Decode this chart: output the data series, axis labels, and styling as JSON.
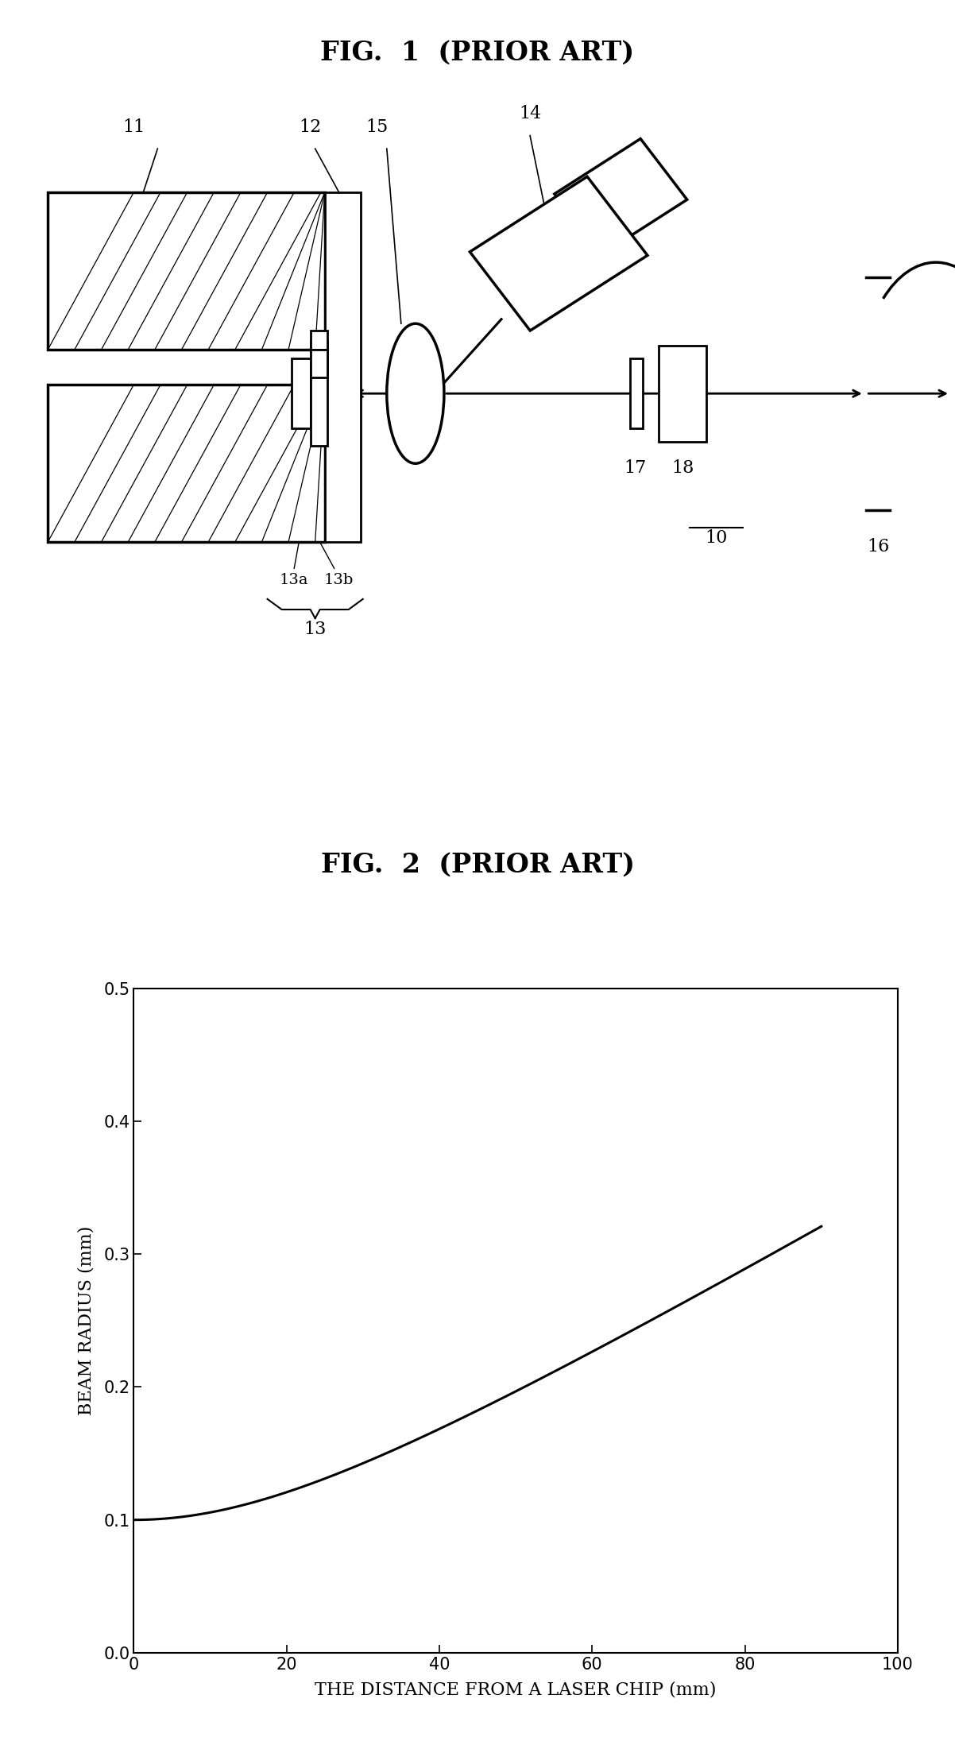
{
  "fig1_title": "FIG.  1  (PRIOR ART)",
  "fig2_title": "FIG.  2  (PRIOR ART)",
  "xlabel": "THE DISTANCE FROM A LASER CHIP (mm)",
  "ylabel": "BEAM RADIUS (mm)",
  "xlim": [
    0,
    100
  ],
  "ylim": [
    0.0,
    0.5
  ],
  "xticks": [
    0,
    20,
    40,
    60,
    80,
    100
  ],
  "yticks": [
    0.0,
    0.1,
    0.2,
    0.3,
    0.4,
    0.5
  ],
  "bg_color": "#ffffff",
  "line_color": "#000000",
  "title_fontsize": 24,
  "label_fontsize": 16,
  "tick_fontsize": 15
}
